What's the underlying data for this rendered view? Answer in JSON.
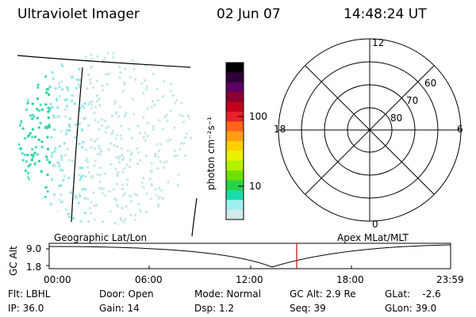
{
  "header": {
    "instrument": "Ultraviolet Imager",
    "date": "02 Jun 07",
    "time": "14:48:24 UT"
  },
  "colorbar": {
    "unit_label": "photon cm⁻²s⁻¹",
    "ticks": [
      "100",
      "10"
    ],
    "colors": [
      "#000000",
      "#30003a",
      "#5b0060",
      "#8a0030",
      "#c0001e",
      "#e8202a",
      "#ff6418",
      "#ff9e12",
      "#ffd000",
      "#e8f200",
      "#b4f000",
      "#6ee000",
      "#2ad248",
      "#18dcaa",
      "#9ef0f0",
      "#d2eaea"
    ]
  },
  "polar_plot": {
    "label_top": "12",
    "label_left": "18",
    "label_right": "6",
    "label_bottom": "0",
    "lat_labels": [
      "60",
      "70",
      "80"
    ]
  },
  "timeline": {
    "left_label": "Geographic Lat/Lon",
    "right_label": "Apex MLat/MLT",
    "y_axis_label": "GC Alt",
    "y_ticks": [
      "9.0",
      "1.8"
    ],
    "x_ticks": [
      "00:00",
      "06:00",
      "12:00",
      "18:00",
      "23:59"
    ],
    "current_marker_time": "14:48"
  },
  "status": {
    "flt": "Flt: LBHL",
    "ip": "IP: 36.0",
    "door": "Door: Open",
    "gain": "Gain: 14",
    "mode": "Mode: Normal",
    "dsp": "Dsp:     1.2",
    "gc_alt": "GC Alt: 2.9 Re",
    "seq": "Seq: 39",
    "glat": "GLat:    -2.6",
    "glon": "GLon: 39.0"
  }
}
